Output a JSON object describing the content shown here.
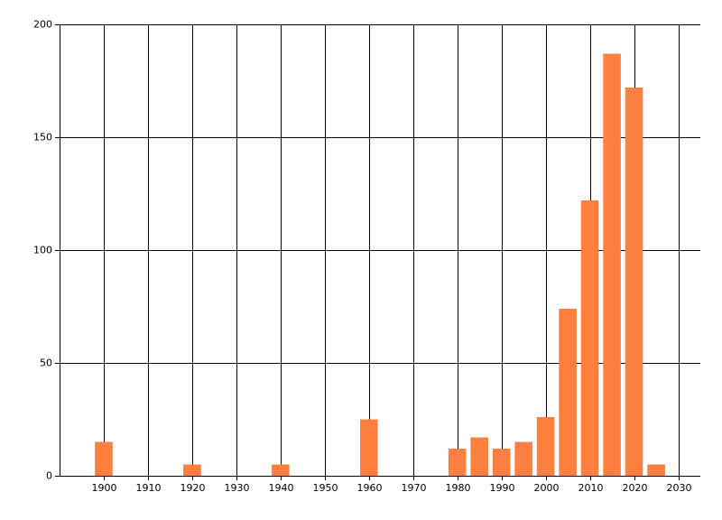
{
  "chart_data": {
    "type": "bar",
    "x": [
      1900,
      1920,
      1940,
      1960,
      1980,
      1985,
      1990,
      1995,
      2000,
      2005,
      2010,
      2015,
      2020,
      2025
    ],
    "values": [
      15,
      5,
      5,
      25,
      12,
      17,
      12,
      15,
      26,
      74,
      122,
      187,
      172,
      5
    ],
    "color": "#ff7f3f",
    "xlim": [
      1890,
      2035
    ],
    "xticks": [
      1900,
      1910,
      1920,
      1930,
      1940,
      1950,
      1960,
      1970,
      1980,
      1990,
      2000,
      2010,
      2020,
      2030
    ],
    "ylim": [
      0,
      200
    ],
    "yticks": [
      0,
      50,
      100,
      150,
      200
    ],
    "grid": true
  }
}
